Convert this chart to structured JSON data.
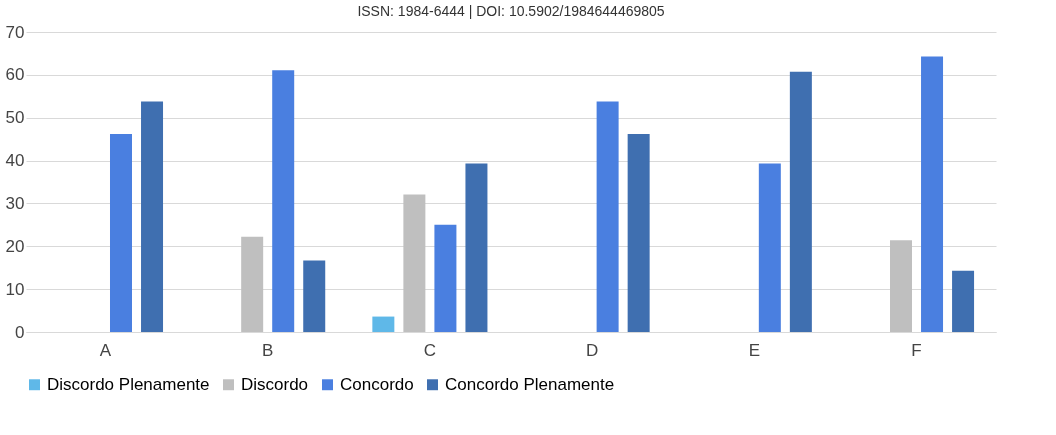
{
  "chart_data": {
    "type": "bar",
    "categories": [
      "A",
      "B",
      "C",
      "D",
      "E",
      "F"
    ],
    "series": [
      {
        "name": "Discordo Plenamente",
        "color": "#5fb8e8",
        "values": [
          0,
          0,
          3.6,
          0,
          0,
          0
        ]
      },
      {
        "name": "Discordo",
        "color": "#bfbfbf",
        "values": [
          0,
          22.2,
          32.1,
          0,
          0,
          21.4
        ]
      },
      {
        "name": "Concordo",
        "color": "#4a7fe0",
        "values": [
          46.2,
          61.1,
          25,
          53.8,
          39.3,
          64.3
        ]
      },
      {
        "name": "Concordo Plenamente",
        "color": "#3f6fb0",
        "values": [
          53.8,
          16.7,
          39.3,
          46.2,
          60.7,
          14.3
        ]
      }
    ],
    "ylim": [
      0,
      70
    ],
    "yticks": [
      0,
      10,
      20,
      30,
      40,
      50,
      60,
      70
    ],
    "grid": "y",
    "legend": "bottom",
    "annotations": [
      "ISSN: 1984-6444 | DOI: 10.5902/1984644469805"
    ]
  }
}
